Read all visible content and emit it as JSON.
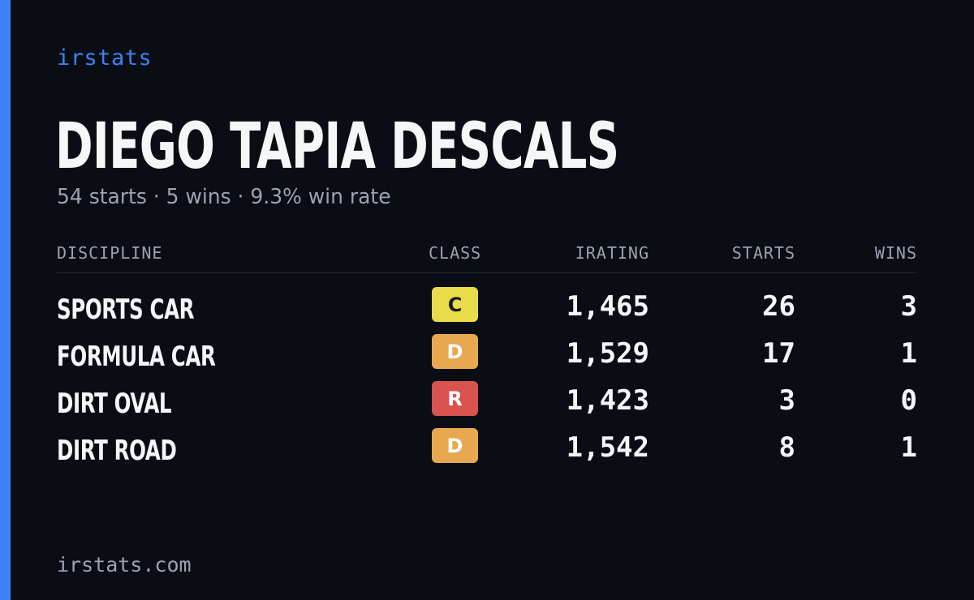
{
  "brand": "irstats",
  "driver_name": "DIEGO TAPIA DESCALS",
  "summary": "54 starts · 5 wins · 9.3% win rate",
  "colors": {
    "accent": "#3b82f6",
    "background": "#0a0d14",
    "class_C": "#eadb4a",
    "class_D": "#e8a84f",
    "class_R": "#d9534f"
  },
  "table": {
    "headers": {
      "discipline": "DISCIPLINE",
      "class": "CLASS",
      "irating": "IRATING",
      "starts": "STARTS",
      "wins": "WINS"
    },
    "rows": [
      {
        "discipline": "SPORTS CAR",
        "class": "C",
        "class_color": "#eadb4a",
        "class_text_color": "#1a1a1a",
        "irating": "1,465",
        "starts": "26",
        "wins": "3"
      },
      {
        "discipline": "FORMULA CAR",
        "class": "D",
        "class_color": "#e8a84f",
        "class_text_color": "#ffffff",
        "irating": "1,529",
        "starts": "17",
        "wins": "1"
      },
      {
        "discipline": "DIRT OVAL",
        "class": "R",
        "class_color": "#d9534f",
        "class_text_color": "#ffffff",
        "irating": "1,423",
        "starts": "3",
        "wins": "0"
      },
      {
        "discipline": "DIRT ROAD",
        "class": "D",
        "class_color": "#e8a84f",
        "class_text_color": "#ffffff",
        "irating": "1,542",
        "starts": "8",
        "wins": "1"
      }
    ]
  },
  "footer": "irstats.com"
}
